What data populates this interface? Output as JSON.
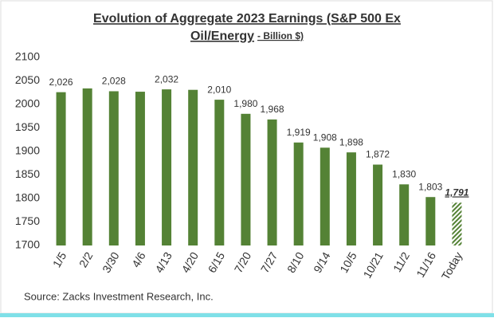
{
  "chart_data": {
    "type": "bar",
    "title_lines": [
      "Evolution of Aggregate 2023 Earnings (S&P 500 Ex",
      "Oil/Energy"
    ],
    "subtitle": "- Billion $)",
    "categories": [
      "1/5",
      "2/2",
      "3/30",
      "4/6",
      "4/13",
      "4/20",
      "6/15",
      "7/20",
      "7/27",
      "8/10",
      "9/14",
      "10/5",
      "10/21",
      "11/2",
      "11/16",
      "Today"
    ],
    "values": [
      2026,
      2034,
      2028,
      2027,
      2032,
      2031,
      2010,
      1980,
      1968,
      1919,
      1908,
      1898,
      1872,
      1830,
      1803,
      1791
    ],
    "value_labels": [
      "2,026",
      null,
      "2,028",
      null,
      "2,032",
      null,
      "2,010",
      "1,980",
      "1,968",
      "1,919",
      "1,908",
      "1,898",
      "1,872",
      "1,830",
      "1,803",
      "1,791"
    ],
    "color": "#548235",
    "hatched_index": 15,
    "ylim": [
      1700,
      2100
    ],
    "yticks": [
      1700,
      1750,
      1800,
      1850,
      1900,
      1950,
      2000,
      2050,
      2100
    ],
    "grid": false,
    "source": "Source: Zacks Investment Research, Inc."
  }
}
